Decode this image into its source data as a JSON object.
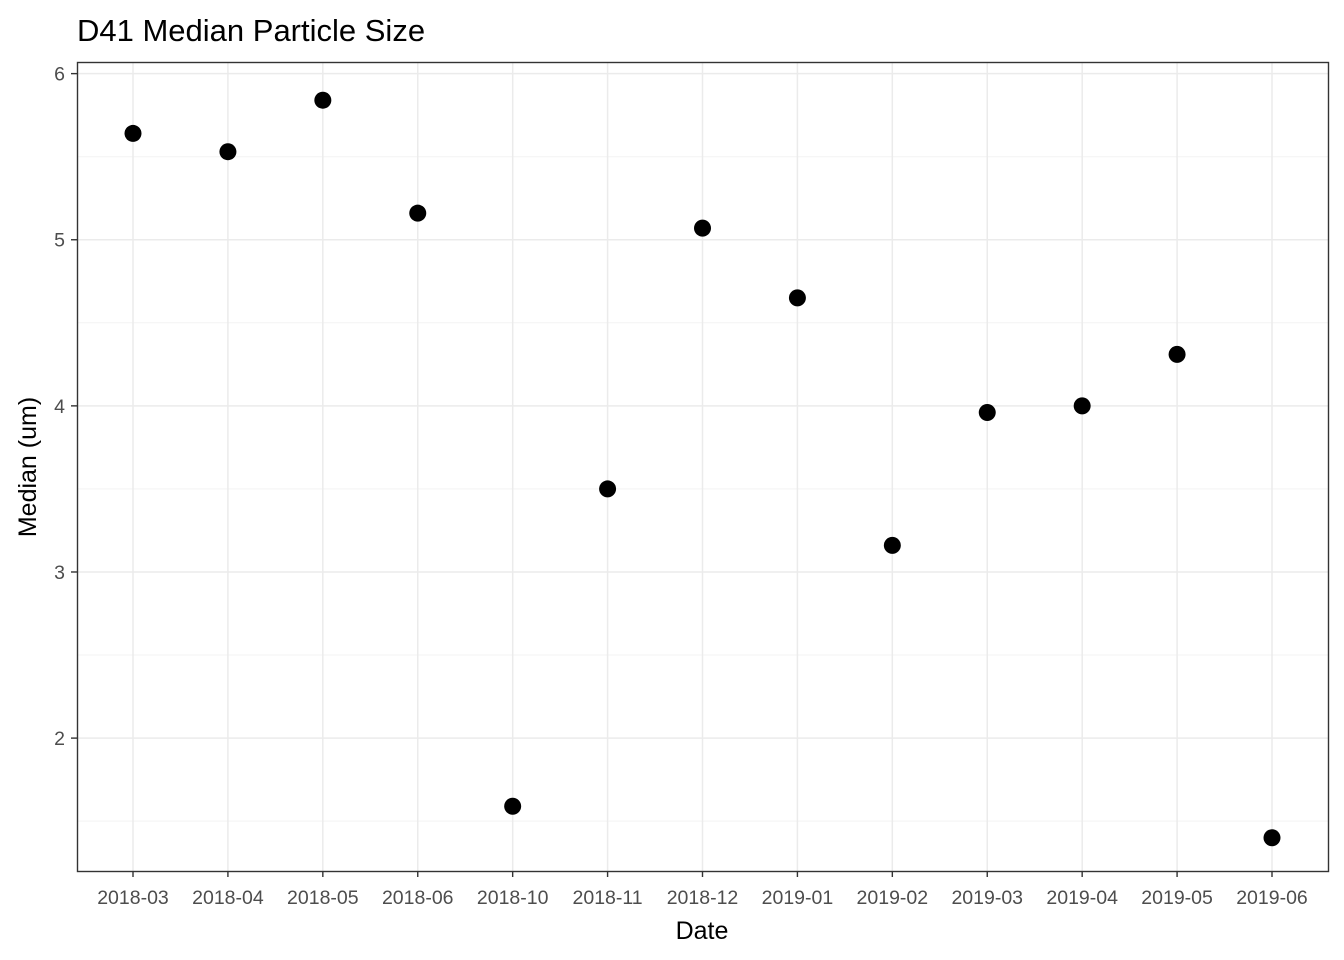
{
  "chart_data": {
    "type": "scatter",
    "title": "D41 Median Particle Size",
    "xlabel": "Date",
    "ylabel": "Median (um)",
    "x": [
      "2018-03",
      "2018-04",
      "2018-05",
      "2018-06",
      "2018-10",
      "2018-11",
      "2018-12",
      "2019-01",
      "2019-02",
      "2019-03",
      "2019-04",
      "2019-05",
      "2019-06"
    ],
    "y": [
      5.64,
      5.53,
      5.84,
      5.16,
      1.59,
      3.5,
      5.07,
      4.65,
      3.16,
      3.96,
      4.0,
      4.31,
      1.4
    ],
    "ylim": [
      1.2,
      6.07
    ],
    "yticks": [
      2,
      3,
      4,
      5,
      6
    ],
    "grid": true,
    "legend": "none",
    "point_color": "#000000"
  }
}
